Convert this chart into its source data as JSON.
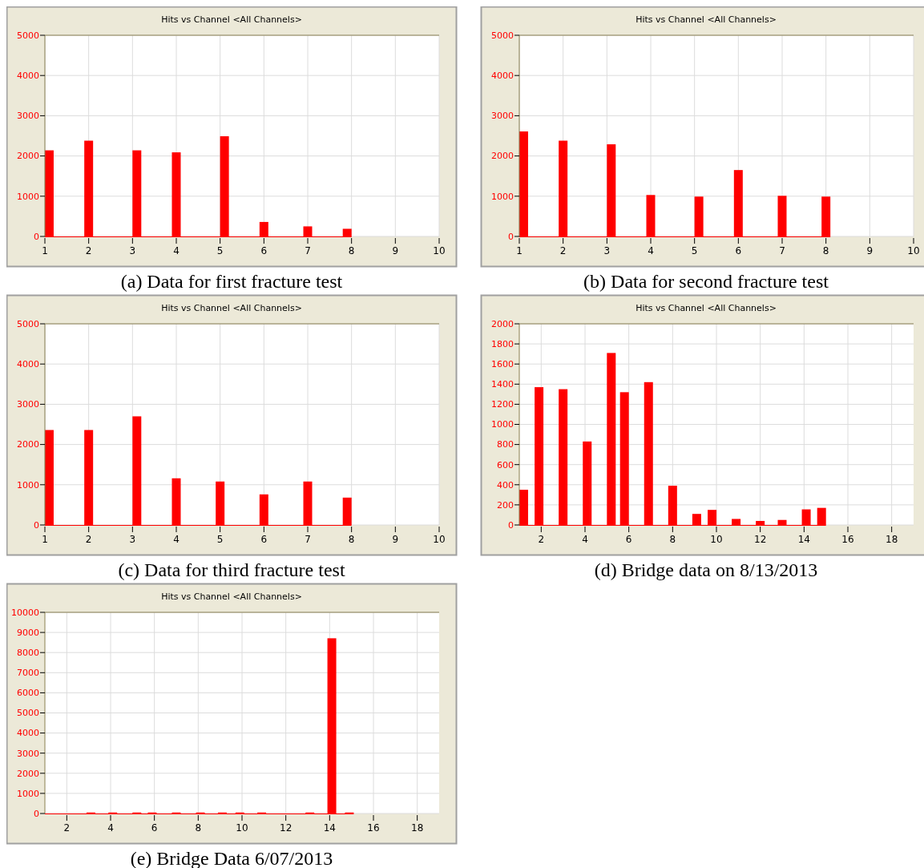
{
  "chart_data": [
    {
      "type": "bar",
      "title": "Hits vs Channel <All Channels>",
      "annotations": [
        "(a) Data for first fracture test"
      ],
      "x": [
        1.1,
        2.0,
        3.1,
        4.0,
        5.1,
        6.0,
        7.0,
        7.9
      ],
      "values": [
        2140,
        2380,
        2140,
        2090,
        2490,
        360,
        250,
        190
      ],
      "color": "#ff0000",
      "xlim": [
        1,
        10
      ],
      "xticks": [
        1,
        2,
        3,
        4,
        5,
        6,
        7,
        8,
        9,
        10
      ],
      "ylim": [
        0,
        5000
      ],
      "yticks": [
        0,
        1000,
        2000,
        3000,
        4000,
        5000
      ],
      "grid": true
    },
    {
      "type": "bar",
      "title": "Hits vs Channel <All Channels>",
      "annotations": [
        "(b) Data for second fracture test"
      ],
      "x": [
        1.1,
        2.0,
        3.1,
        4.0,
        5.1,
        6.0,
        7.0,
        8.0
      ],
      "values": [
        2610,
        2380,
        2290,
        1030,
        990,
        1650,
        1010,
        990
      ],
      "color": "#ff0000",
      "xlim": [
        1,
        10
      ],
      "xticks": [
        1,
        2,
        3,
        4,
        5,
        6,
        7,
        8,
        9,
        10
      ],
      "ylim": [
        0,
        5000
      ],
      "yticks": [
        0,
        1000,
        2000,
        3000,
        4000,
        5000
      ],
      "grid": true
    },
    {
      "type": "bar",
      "title": "Hits vs Channel <All Channels>",
      "annotations": [
        "(c) Data for third fracture test"
      ],
      "x": [
        1.1,
        2.0,
        3.1,
        4.0,
        5.0,
        6.0,
        7.0,
        7.9
      ],
      "values": [
        2360,
        2360,
        2700,
        1160,
        1080,
        760,
        1080,
        680
      ],
      "color": "#ff0000",
      "xlim": [
        1,
        10
      ],
      "xticks": [
        1,
        2,
        3,
        4,
        5,
        6,
        7,
        8,
        9,
        10
      ],
      "ylim": [
        0,
        5000
      ],
      "yticks": [
        0,
        1000,
        2000,
        3000,
        4000,
        5000
      ],
      "grid": true
    },
    {
      "type": "bar",
      "title": "Hits vs Channel <All Channels>",
      "annotations": [
        "(d) Bridge data on 8/13/2013"
      ],
      "x": [
        1.2,
        1.9,
        3.0,
        4.1,
        5.2,
        5.8,
        6.9,
        8.0,
        9.1,
        9.8,
        10.9,
        12.0,
        13.0,
        14.1,
        14.8
      ],
      "values": [
        350,
        1370,
        1350,
        830,
        1710,
        1320,
        1420,
        390,
        110,
        150,
        60,
        40,
        50,
        155,
        170
      ],
      "color": "#ff0000",
      "xlim": [
        1,
        19
      ],
      "xticks": [
        2,
        4,
        6,
        8,
        10,
        12,
        14,
        16,
        18
      ],
      "ylim": [
        0,
        2000
      ],
      "yticks": [
        0,
        200,
        400,
        600,
        800,
        1000,
        1200,
        1400,
        1600,
        1800,
        2000
      ],
      "grid": true
    },
    {
      "type": "bar",
      "title": "Hits vs Channel <All Channels>",
      "annotations": [
        "(e) Bridge Data 6/07/2013"
      ],
      "x": [
        3.1,
        4.1,
        5.2,
        5.9,
        7.0,
        8.1,
        9.1,
        9.9,
        10.9,
        13.1,
        14.1,
        14.9
      ],
      "values": [
        50,
        50,
        50,
        50,
        50,
        50,
        50,
        50,
        50,
        50,
        8710,
        50
      ],
      "color": "#ff0000",
      "xlim": [
        1,
        19
      ],
      "xticks": [
        2,
        4,
        6,
        8,
        10,
        12,
        14,
        16,
        18
      ],
      "ylim": [
        0,
        10000
      ],
      "yticks": [
        0,
        1000,
        2000,
        3000,
        4000,
        5000,
        6000,
        7000,
        8000,
        9000,
        10000
      ],
      "grid": true
    }
  ]
}
